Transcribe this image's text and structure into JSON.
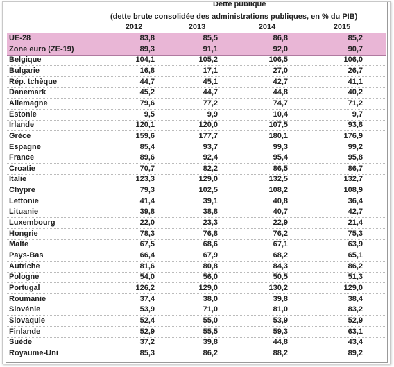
{
  "header": {
    "title": "Dette publique",
    "subtitle": "(dette brute consolidée des administrations publiques, en % du PIB)",
    "years": [
      "2012",
      "2013",
      "2014",
      "2015"
    ]
  },
  "table": {
    "rows": [
      [
        "UE-28",
        "83,8",
        "85,5",
        "86,8",
        "85,2"
      ],
      [
        "Zone euro (ZE-19)",
        "89,3",
        "91,1",
        "92,0",
        "90,7"
      ],
      [
        "Belgique",
        "104,1",
        "105,2",
        "106,5",
        "106,0"
      ],
      [
        "Bulgarie",
        "16,8",
        "17,1",
        "27,0",
        "26,7"
      ],
      [
        "Rép. tchèque",
        "44,7",
        "45,1",
        "42,7",
        "41,1"
      ],
      [
        "Danemark",
        "45,2",
        "44,7",
        "44,8",
        "40,2"
      ],
      [
        "Allemagne",
        "79,6",
        "77,2",
        "74,7",
        "71,2"
      ],
      [
        "Estonie",
        "9,5",
        "9,9",
        "10,4",
        "9,7"
      ],
      [
        "Irlande",
        "120,1",
        "120,0",
        "107,5",
        "93,8"
      ],
      [
        "Grèce",
        "159,6",
        "177,7",
        "180,1",
        "176,9"
      ],
      [
        "Espagne",
        "85,4",
        "93,7",
        "99,3",
        "99,2"
      ],
      [
        "France",
        "89,6",
        "92,4",
        "95,4",
        "95,8"
      ],
      [
        "Croatie",
        "70,7",
        "82,2",
        "86,5",
        "86,7"
      ],
      [
        "Italie",
        "123,3",
        "129,0",
        "132,5",
        "132,7"
      ],
      [
        "Chypre",
        "79,3",
        "102,5",
        "108,2",
        "108,9"
      ],
      [
        "Lettonie",
        "41,4",
        "39,1",
        "40,8",
        "36,4"
      ],
      [
        "Lituanie",
        "39,8",
        "38,8",
        "40,7",
        "42,7"
      ],
      [
        "Luxembourg",
        "22,0",
        "23,3",
        "22,9",
        "21,4"
      ],
      [
        "Hongrie",
        "78,3",
        "76,8",
        "76,2",
        "75,3"
      ],
      [
        "Malte",
        "67,5",
        "68,6",
        "67,1",
        "63,9"
      ],
      [
        "Pays-Bas",
        "66,4",
        "67,9",
        "68,2",
        "65,1"
      ],
      [
        "Autriche",
        "81,6",
        "80,8",
        "84,3",
        "86,2"
      ],
      [
        "Pologne",
        "54,0",
        "56,0",
        "50,5",
        "51,3"
      ],
      [
        "Portugal",
        "126,2",
        "129,0",
        "130,2",
        "129,0"
      ],
      [
        "Roumanie",
        "37,4",
        "38,0",
        "39,8",
        "38,4"
      ],
      [
        "Slovénie",
        "53,9",
        "71,0",
        "81,0",
        "83,2"
      ],
      [
        "Slovaquie",
        "52,4",
        "55,0",
        "53,9",
        "52,9"
      ],
      [
        "Finlande",
        "52,9",
        "55,5",
        "59,3",
        "63,1"
      ],
      [
        "Suède",
        "37,2",
        "39,8",
        "44,8",
        "43,4"
      ],
      [
        "Royaume-Uni",
        "85,3",
        "86,2",
        "88,2",
        "89,2"
      ]
    ]
  }
}
